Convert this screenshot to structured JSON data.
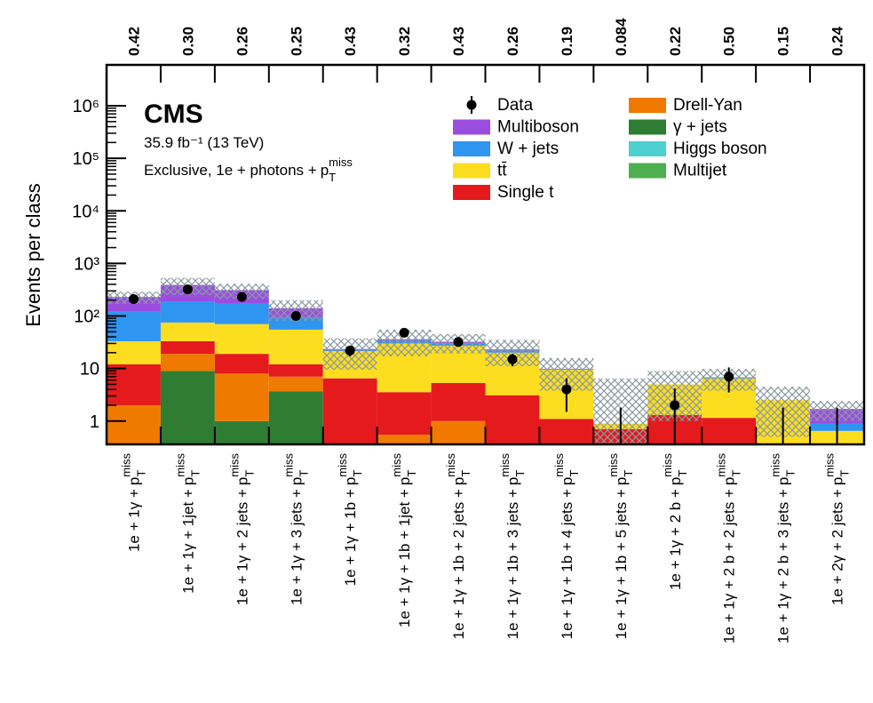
{
  "chart_data": {
    "type": "stacked_bar",
    "experiment": "CMS",
    "luminosity": "35.9 fb⁻¹ (13 TeV)",
    "subtitle": "Exclusive, 1e + photons +",
    "met_label": {
      "base": "p",
      "sub": "T",
      "sup": "miss"
    },
    "y_label": "Events per class",
    "categories": [
      "1e + 1γ +",
      "1e + 1γ + 1jet +",
      "1e + 1γ + 2 jets +",
      "1e + 1γ + 3 jets +",
      "1e + 1γ + 1b +",
      "1e + 1γ + 1b + 1jet +",
      "1e + 1γ + 1b + 2 jets +",
      "1e + 1γ + 1b + 3 jets +",
      "1e + 1γ + 1b + 4 jets +",
      "1e + 1γ + 1b + 5 jets +",
      "1e + 1γ + 2 b +",
      "1e + 1γ + 2 b + 2 jets +",
      "1e + 1γ + 2 b + 3 jets +",
      "1e + 2γ + 2 jets +"
    ],
    "top_labels": [
      "0.42",
      "0.30",
      "0.26",
      "0.25",
      "0.43",
      "0.32",
      "0.43",
      "0.26",
      "0.19",
      "0.084",
      "0.22",
      "0.50",
      "0.15",
      "0.24"
    ],
    "log_scale": true,
    "ylim": [
      0.36,
      6000000
    ],
    "yticks": [
      1,
      10,
      {
        "value": 100,
        "label": "10²"
      },
      {
        "value": 1000,
        "label": "10³"
      },
      {
        "value": 10000,
        "label": "10⁴"
      },
      {
        "value": 100000,
        "label": "10⁵"
      },
      {
        "value": 1000000,
        "label": "10⁶"
      }
    ],
    "data": {
      "name": "Data",
      "values": [
        210,
        320,
        230,
        100,
        22,
        48,
        32,
        15,
        4,
        0,
        2,
        7,
        0,
        0
      ],
      "errors": [
        15,
        18,
        15,
        10,
        5,
        7,
        6,
        4,
        2.5,
        1.8,
        2.2,
        3.5,
        1.8,
        1.8
      ]
    },
    "series": [
      {
        "name": "Multiboson",
        "color": "#9b4de0",
        "values": [
          110,
          200,
          140,
          45,
          1,
          2,
          2,
          1,
          0.3,
          0,
          0,
          0,
          0,
          0.8
        ]
      },
      {
        "name": "W + jets",
        "color": "#2e95f0",
        "values": [
          87,
          115,
          100,
          40,
          1,
          4,
          3,
          2,
          0,
          0,
          0,
          0.3,
          0,
          0.25
        ]
      },
      {
        "name": "tt̄",
        "color": "#fddd1f",
        "values": [
          21,
          42,
          51,
          43,
          15,
          26.5,
          22,
          17,
          8.4,
          0.2,
          3.7,
          5.35,
          2.5,
          0.65
        ]
      },
      {
        "name": "Single t",
        "color": "#e41a1c",
        "values": [
          10,
          14,
          11,
          5,
          6.5,
          3,
          4.3,
          3.1,
          1.1,
          0.7,
          1.3,
          1.15,
          0,
          0
        ]
      },
      {
        "name": "Drell-Yan",
        "color": "#f07a00",
        "values": [
          2,
          10,
          7,
          3.3,
          0,
          0.55,
          1,
          0,
          0,
          0,
          0,
          0,
          0,
          0
        ]
      },
      {
        "name": "γ + jets",
        "color": "#2e7d32",
        "values": [
          0,
          9,
          1,
          3.7,
          0,
          0,
          0,
          0,
          0,
          0,
          0,
          0,
          0,
          0
        ]
      },
      {
        "name": "Higgs boson",
        "color": "#4dd0d0",
        "values": [
          0,
          0,
          0,
          0,
          0,
          0,
          0,
          0,
          0,
          0,
          0,
          0,
          0,
          0
        ]
      },
      {
        "name": "Multijet",
        "color": "#4caf50",
        "values": [
          0,
          0,
          0,
          0,
          0,
          0,
          0,
          0,
          0,
          0,
          0,
          0,
          0,
          0
        ]
      }
    ],
    "mc_uncertainty": [
      60,
      140,
      100,
      60,
      14,
      19,
      13,
      12,
      6,
      5.6,
      4,
      3,
      2,
      0.7
    ]
  }
}
